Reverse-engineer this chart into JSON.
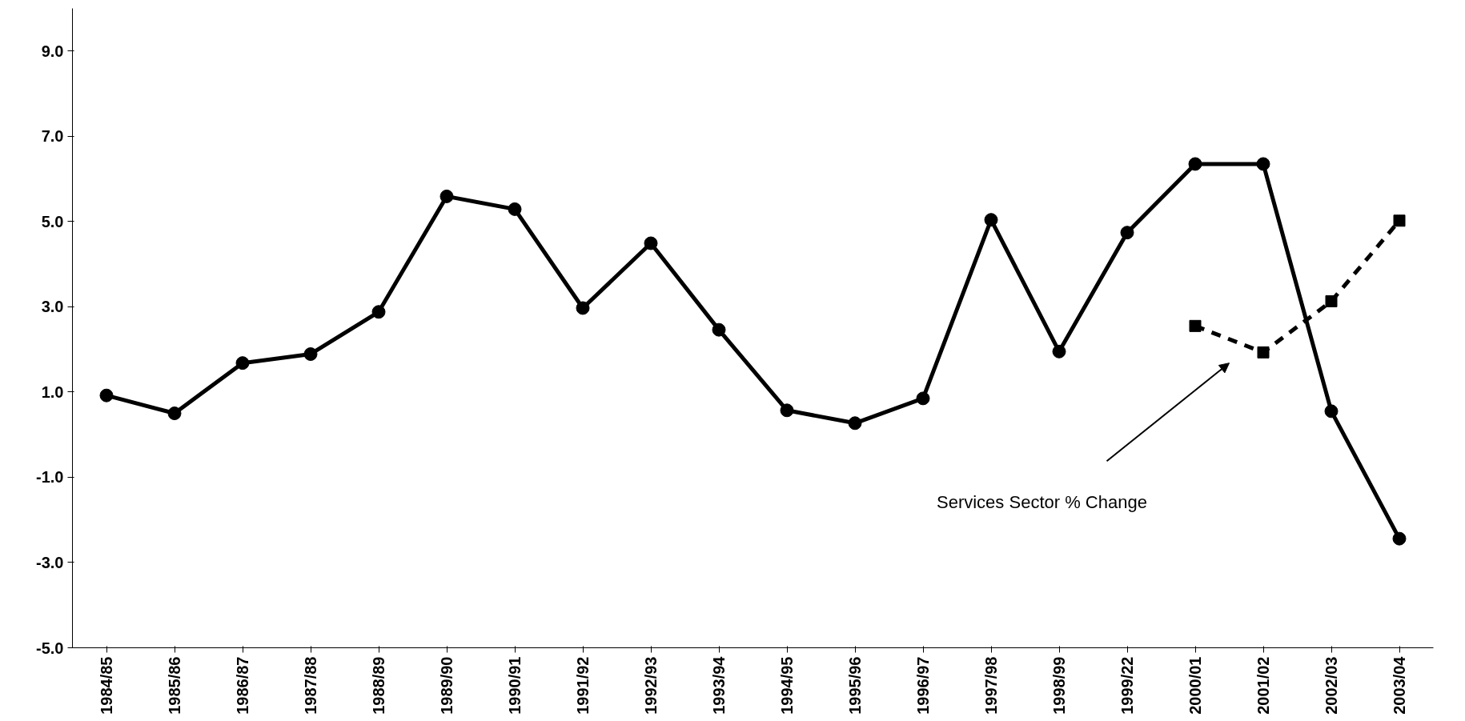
{
  "chart_data": {
    "type": "line",
    "categories": [
      "1984/85",
      "1985/86",
      "1986/87",
      "1987/88",
      "1988/89",
      "1989/90",
      "1990/91",
      "1991/92",
      "1992/93",
      "1993/94",
      "1994/95",
      "1995/96",
      "1996/97",
      "1997/98",
      "1998/99",
      "1999/22",
      "2000/01",
      "2001/02",
      "2002/03",
      "2003/04"
    ],
    "series": [
      {
        "color": "#000000",
        "line_style": "solid",
        "values": [
          0.92,
          0.5,
          1.68,
          1.89,
          2.88,
          5.59,
          5.29,
          2.97,
          4.49,
          2.46,
          0.57,
          0.27,
          0.85,
          5.04,
          1.95,
          4.74,
          6.35,
          6.35,
          0.55,
          -2.44
        ]
      },
      {
        "name": "Services Sector % Change",
        "color": "#000000",
        "marker": "square",
        "line_style": "dashed",
        "values": [
          null,
          null,
          null,
          null,
          null,
          null,
          null,
          null,
          null,
          null,
          null,
          null,
          null,
          null,
          null,
          null,
          2.55,
          1.93,
          3.13,
          5.02
        ]
      }
    ],
    "ylim": [
      -5,
      10
    ],
    "yticks": [
      {
        "value": -5,
        "label": "-5.0"
      },
      {
        "value": -3,
        "label": "-3.0"
      },
      {
        "value": -1,
        "label": "-1.0"
      },
      {
        "value": 1,
        "label": "1.0"
      },
      {
        "value": 3,
        "label": "3.0"
      },
      {
        "value": 5,
        "label": "5.0"
      },
      {
        "value": 7,
        "label": "7.0"
      },
      {
        "value": 9,
        "label": "9.0"
      }
    ],
    "marker": "circle"
  }
}
